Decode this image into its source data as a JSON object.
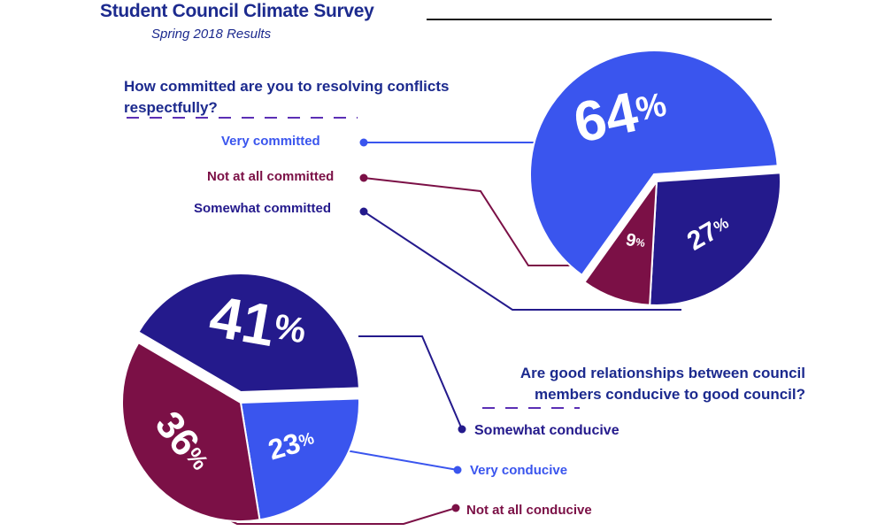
{
  "header": {
    "title": "Student Council Climate Survey",
    "subtitle": "Spring 2018 Results"
  },
  "colors": {
    "light_blue": "#3a55ee",
    "dark_blue": "#241a8c",
    "maroon": "#7b1046",
    "heading": "#1c2a8e"
  },
  "chart_data": [
    {
      "type": "pie",
      "title": "How committed are you to resolving conflicts respectfully?",
      "slices": [
        {
          "label": "Very committed",
          "value": 64,
          "display": "64",
          "color": "#3a55ee"
        },
        {
          "label": "Somewhat committed",
          "value": 27,
          "display": "27",
          "color": "#241a8c"
        },
        {
          "label": "Not at all committed",
          "value": 9,
          "display": "9",
          "color": "#7b1046"
        }
      ],
      "unit": "%"
    },
    {
      "type": "pie",
      "title": "Are good relationships between council members conducive to good council?",
      "slices": [
        {
          "label": "Somewhat conducive",
          "value": 41,
          "display": "41",
          "color": "#241a8c"
        },
        {
          "label": "Very conducive",
          "value": 23,
          "display": "23",
          "color": "#3a55ee"
        },
        {
          "label": "Not at all conducive",
          "value": 36,
          "display": "36",
          "color": "#7b1046"
        }
      ],
      "unit": "%"
    }
  ]
}
